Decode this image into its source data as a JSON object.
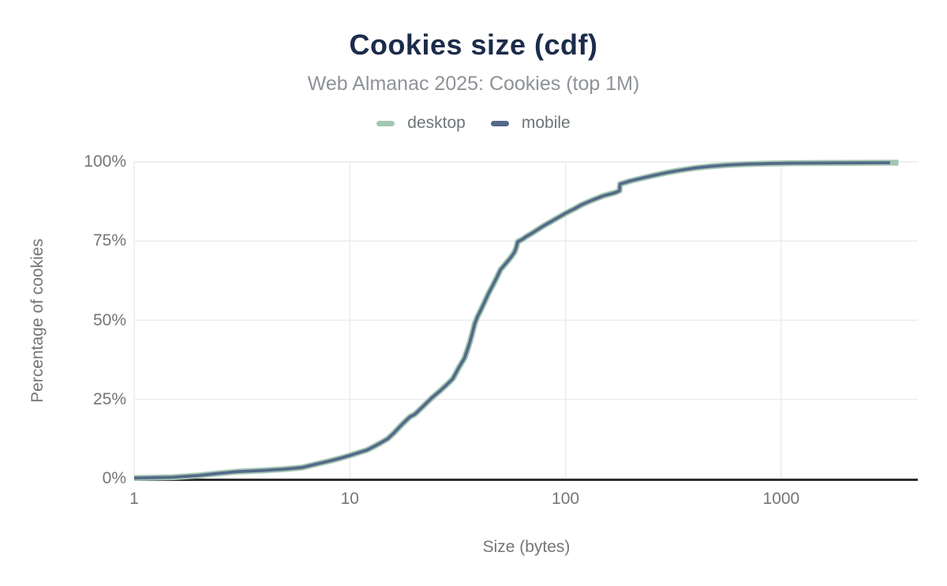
{
  "chart_data": {
    "type": "line",
    "title": "Cookies size (cdf)",
    "subtitle": "Web Almanac 2025: Cookies (top 1M)",
    "xlabel": "Size (bytes)",
    "ylabel": "Percentage of cookies",
    "x_scale": "log",
    "xlim": [
      1,
      4300
    ],
    "ylim": [
      0,
      100
    ],
    "x_ticks": [
      1,
      10,
      100,
      1000
    ],
    "y_ticks": [
      0,
      25,
      50,
      75,
      100
    ],
    "y_tick_suffix": "%",
    "grid": true,
    "legend_position": "top",
    "series": [
      {
        "name": "desktop",
        "color": "#a4c7b2",
        "line_width": 7.5,
        "points": [
          [
            1,
            0.2
          ],
          [
            1.5,
            0.4
          ],
          [
            2,
            1.0
          ],
          [
            2.5,
            1.7
          ],
          [
            3,
            2.2
          ],
          [
            3.5,
            2.4
          ],
          [
            4,
            2.6
          ],
          [
            5,
            3.0
          ],
          [
            6,
            3.5
          ],
          [
            7,
            4.6
          ],
          [
            8,
            5.5
          ],
          [
            9,
            6.4
          ],
          [
            10,
            7.3
          ],
          [
            11,
            8.2
          ],
          [
            12,
            9.0
          ],
          [
            13,
            10.2
          ],
          [
            14,
            11.4
          ],
          [
            15,
            12.6
          ],
          [
            16,
            14.4
          ],
          [
            17,
            16.3
          ],
          [
            18,
            18.0
          ],
          [
            19,
            19.5
          ],
          [
            20,
            20.3
          ],
          [
            22,
            23.0
          ],
          [
            24,
            25.5
          ],
          [
            26,
            27.5
          ],
          [
            28,
            29.5
          ],
          [
            30,
            31.5
          ],
          [
            32,
            35.0
          ],
          [
            34,
            38.0
          ],
          [
            35,
            40.5
          ],
          [
            36,
            43.0
          ],
          [
            37,
            46.0
          ],
          [
            38,
            49.0
          ],
          [
            39,
            51.0
          ],
          [
            40,
            52.5
          ],
          [
            42,
            55.5
          ],
          [
            44,
            58.5
          ],
          [
            46,
            61.0
          ],
          [
            48,
            63.5
          ],
          [
            50,
            66.0
          ],
          [
            53,
            68.0
          ],
          [
            56,
            70.0
          ],
          [
            58,
            71.5
          ],
          [
            59,
            72.8
          ],
          [
            60,
            74.8
          ],
          [
            63,
            75.5
          ],
          [
            66,
            76.5
          ],
          [
            70,
            77.5
          ],
          [
            75,
            78.8
          ],
          [
            80,
            80.0
          ],
          [
            85,
            81.0
          ],
          [
            90,
            82.0
          ],
          [
            95,
            82.9
          ],
          [
            100,
            83.8
          ],
          [
            110,
            85.2
          ],
          [
            120,
            86.6
          ],
          [
            132,
            87.8
          ],
          [
            150,
            89.3
          ],
          [
            170,
            90.3
          ],
          [
            178,
            90.9
          ],
          [
            179,
            93.0
          ],
          [
            200,
            94.0
          ],
          [
            230,
            95.0
          ],
          [
            260,
            95.8
          ],
          [
            300,
            96.7
          ],
          [
            330,
            97.2
          ],
          [
            400,
            98.1
          ],
          [
            470,
            98.6
          ],
          [
            560,
            99.0
          ],
          [
            700,
            99.3
          ],
          [
            900,
            99.5
          ],
          [
            1100,
            99.6
          ],
          [
            1500,
            99.65
          ],
          [
            2000,
            99.7
          ],
          [
            2600,
            99.72
          ],
          [
            3200,
            99.75
          ],
          [
            3500,
            99.75
          ]
        ]
      },
      {
        "name": "mobile",
        "color": "#54698a",
        "line_width": 3.75,
        "points": [
          [
            1,
            0.2
          ],
          [
            1.5,
            0.4
          ],
          [
            2,
            1.0
          ],
          [
            2.5,
            1.7
          ],
          [
            3,
            2.2
          ],
          [
            3.5,
            2.4
          ],
          [
            4,
            2.6
          ],
          [
            5,
            3.0
          ],
          [
            6,
            3.5
          ],
          [
            7,
            4.6
          ],
          [
            8,
            5.5
          ],
          [
            9,
            6.4
          ],
          [
            10,
            7.3
          ],
          [
            11,
            8.2
          ],
          [
            12,
            9.0
          ],
          [
            13,
            10.2
          ],
          [
            14,
            11.4
          ],
          [
            15,
            12.6
          ],
          [
            16,
            14.4
          ],
          [
            17,
            16.3
          ],
          [
            18,
            18.0
          ],
          [
            19,
            19.5
          ],
          [
            20,
            20.3
          ],
          [
            22,
            23.0
          ],
          [
            24,
            25.5
          ],
          [
            26,
            27.5
          ],
          [
            28,
            29.5
          ],
          [
            30,
            31.5
          ],
          [
            32,
            35.0
          ],
          [
            34,
            38.0
          ],
          [
            35,
            40.5
          ],
          [
            36,
            43.0
          ],
          [
            37,
            46.0
          ],
          [
            38,
            49.0
          ],
          [
            39,
            51.0
          ],
          [
            40,
            52.5
          ],
          [
            42,
            55.5
          ],
          [
            44,
            58.5
          ],
          [
            46,
            61.0
          ],
          [
            48,
            63.5
          ],
          [
            50,
            66.0
          ],
          [
            53,
            68.0
          ],
          [
            56,
            70.0
          ],
          [
            58,
            71.5
          ],
          [
            59,
            72.8
          ],
          [
            60,
            74.8
          ],
          [
            63,
            75.5
          ],
          [
            66,
            76.5
          ],
          [
            70,
            77.5
          ],
          [
            75,
            78.8
          ],
          [
            80,
            80.0
          ],
          [
            85,
            81.0
          ],
          [
            90,
            82.0
          ],
          [
            95,
            82.9
          ],
          [
            100,
            83.8
          ],
          [
            110,
            85.2
          ],
          [
            120,
            86.6
          ],
          [
            132,
            87.8
          ],
          [
            150,
            89.3
          ],
          [
            170,
            90.3
          ],
          [
            178,
            90.9
          ],
          [
            179,
            93.0
          ],
          [
            200,
            94.0
          ],
          [
            230,
            95.0
          ],
          [
            260,
            95.8
          ],
          [
            300,
            96.7
          ],
          [
            330,
            97.2
          ],
          [
            400,
            98.1
          ],
          [
            470,
            98.6
          ],
          [
            560,
            99.0
          ],
          [
            700,
            99.3
          ],
          [
            900,
            99.5
          ],
          [
            1100,
            99.6
          ],
          [
            1500,
            99.65
          ],
          [
            2000,
            99.7
          ],
          [
            2600,
            99.72
          ],
          [
            3200,
            99.75
          ]
        ]
      }
    ]
  },
  "colors": {
    "title": "#1b2b4b",
    "subtitle": "#8e9298",
    "tick_label": "#757575",
    "axis_title": "#757575",
    "legend_label": "#6e7478",
    "grid": "#ececec",
    "axis_line": "#2f2f2f",
    "background": "#ffffff"
  }
}
